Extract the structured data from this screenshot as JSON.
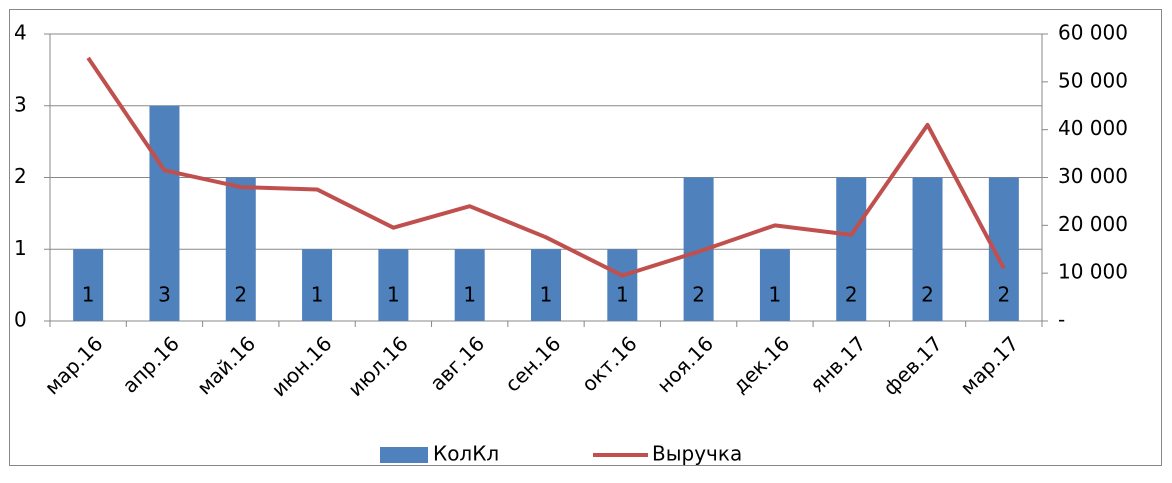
{
  "chart_data": {
    "type": "combo",
    "categories": [
      "мар.16",
      "апр.16",
      "май.16",
      "июн.16",
      "июл.16",
      "авг.16",
      "сен.16",
      "окт.16",
      "ноя.16",
      "дек.16",
      "янв.17",
      "фев.17",
      "мар.17"
    ],
    "series": [
      {
        "name": "КолКл",
        "type": "bar",
        "color": "#4f81bd",
        "values": [
          1,
          3,
          2,
          1,
          1,
          1,
          1,
          1,
          2,
          1,
          2,
          2,
          2
        ]
      },
      {
        "name": "Выручка",
        "type": "line",
        "axis": "y2",
        "color": "#c0504d",
        "values": [
          55000,
          31500,
          28000,
          27500,
          19500,
          24000,
          17500,
          9500,
          14500,
          20000,
          18000,
          41000,
          11000
        ]
      }
    ],
    "ylim": [
      0,
      4
    ],
    "yticks": [
      0,
      1,
      2,
      3,
      4
    ],
    "y2lim": [
      0,
      60000
    ],
    "y2ticks": [
      {
        "value": 0,
        "label": "-"
      },
      {
        "value": 10000,
        "label": "10 000"
      },
      {
        "value": 20000,
        "label": "20 000"
      },
      {
        "value": 30000,
        "label": "30 000"
      },
      {
        "value": 40000,
        "label": "40 000"
      },
      {
        "value": 50000,
        "label": "50 000"
      },
      {
        "value": 60000,
        "label": "60 000"
      }
    ],
    "grid": true,
    "legend": "bottom"
  }
}
